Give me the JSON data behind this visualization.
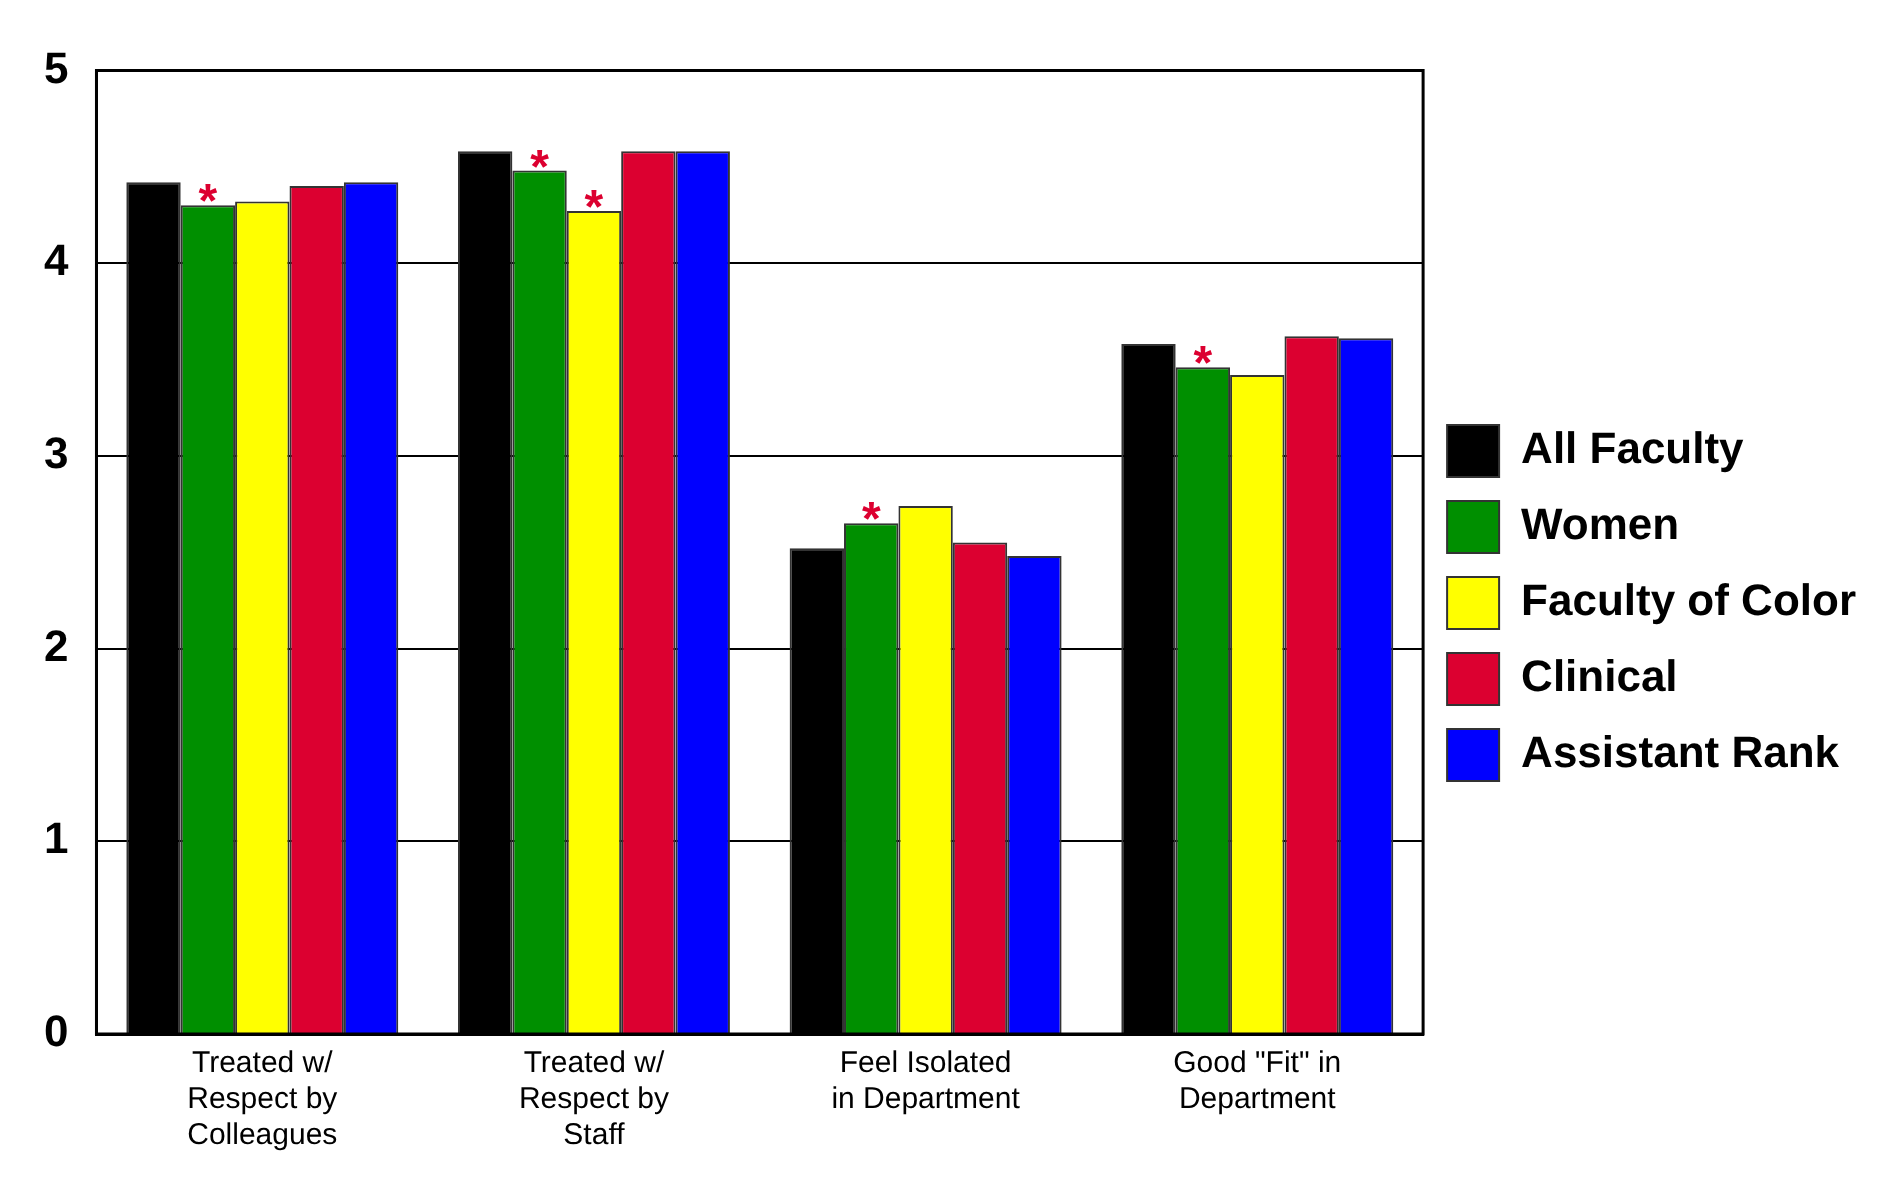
{
  "chart_data": {
    "type": "bar",
    "categories": [
      "Treated w/ Respect by Colleagues",
      "Treated w/ Respect by Staff",
      "Feel Isolated in Department",
      "Good \"Fit\" in Department"
    ],
    "series": [
      {
        "name": "All Faculty",
        "color": "#000000",
        "values": [
          4.42,
          4.58,
          2.52,
          3.58
        ]
      },
      {
        "name": "Women",
        "color": "#008f00",
        "values": [
          4.3,
          4.48,
          2.65,
          3.46
        ],
        "value_labels": [
          "*",
          "*",
          "*",
          "*"
        ]
      },
      {
        "name": "Faculty of Color",
        "color": "#ffff00",
        "values": [
          4.32,
          4.27,
          2.74,
          3.42
        ],
        "value_labels": [
          null,
          "*",
          null,
          null
        ]
      },
      {
        "name": "Clinical",
        "color": "#dc0030",
        "values": [
          4.4,
          4.58,
          2.55,
          3.62
        ]
      },
      {
        "name": "Assistant Rank",
        "color": "#0000ff",
        "values": [
          4.42,
          4.58,
          2.48,
          3.61
        ]
      }
    ],
    "ylim": [
      0,
      5
    ],
    "yticks": [
      0,
      1,
      2,
      3,
      4,
      5
    ],
    "grid": "y",
    "legend": "right"
  }
}
